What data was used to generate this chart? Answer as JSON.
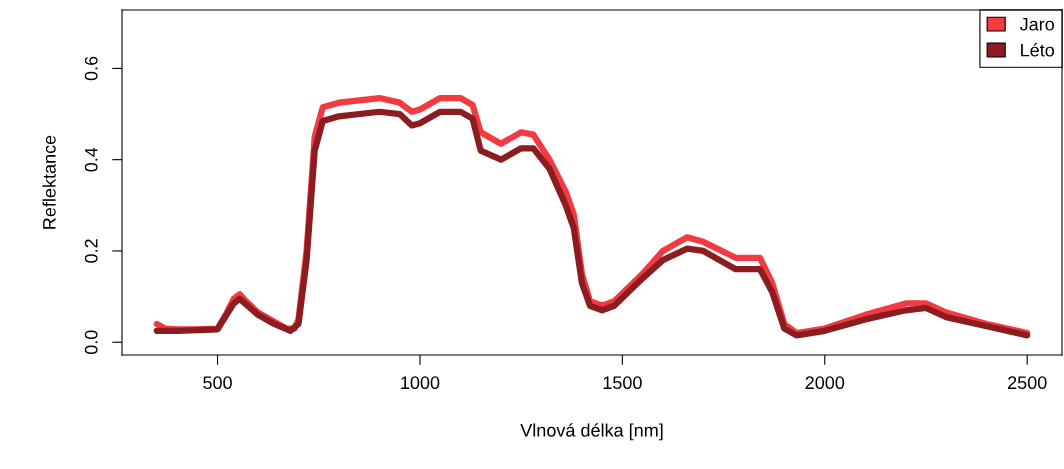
{
  "chart_data": {
    "type": "line",
    "xlabel": "Vlnová délka [nm]",
    "ylabel": "Reflektance",
    "xlim": [
      264,
      2586
    ],
    "ylim": [
      -0.028,
      0.728
    ],
    "xticks": [
      500,
      1000,
      1500,
      2000,
      2500
    ],
    "yticks": [
      {
        "value": 0,
        "label": "0.0"
      },
      {
        "value": 0.2,
        "label": "0.2"
      },
      {
        "value": 0.4,
        "label": "0.4"
      },
      {
        "value": 0.6,
        "label": "0.6"
      }
    ],
    "legend": "top right",
    "grid": false,
    "line_style": "solid",
    "series": [
      {
        "name": "Jaro",
        "color": "#f23a40",
        "x": [
          350,
          370,
          400,
          450,
          500,
          520,
          540,
          555,
          570,
          600,
          640,
          670,
          690,
          700,
          720,
          740,
          760,
          800,
          900,
          950,
          980,
          1000,
          1050,
          1100,
          1130,
          1150,
          1200,
          1250,
          1280,
          1320,
          1360,
          1380,
          1400,
          1420,
          1450,
          1480,
          1550,
          1600,
          1660,
          1700,
          1780,
          1840,
          1870,
          1900,
          1930,
          2000,
          2100,
          2200,
          2250,
          2300,
          2400,
          2500
        ],
        "values": [
          0.04,
          0.03,
          0.028,
          0.028,
          0.03,
          0.06,
          0.095,
          0.105,
          0.09,
          0.065,
          0.045,
          0.03,
          0.03,
          0.05,
          0.2,
          0.45,
          0.515,
          0.525,
          0.535,
          0.525,
          0.505,
          0.51,
          0.535,
          0.535,
          0.52,
          0.46,
          0.435,
          0.46,
          0.455,
          0.4,
          0.33,
          0.28,
          0.15,
          0.09,
          0.08,
          0.09,
          0.15,
          0.2,
          0.23,
          0.22,
          0.185,
          0.185,
          0.13,
          0.04,
          0.02,
          0.03,
          0.06,
          0.085,
          0.085,
          0.065,
          0.04,
          0.02
        ]
      },
      {
        "name": "Léto",
        "color": "#8b1c1f",
        "x": [
          350,
          400,
          500,
          540,
          555,
          600,
          640,
          680,
          700,
          720,
          740,
          760,
          800,
          900,
          950,
          980,
          1000,
          1050,
          1100,
          1130,
          1150,
          1200,
          1250,
          1280,
          1320,
          1360,
          1380,
          1400,
          1420,
          1450,
          1480,
          1550,
          1600,
          1660,
          1700,
          1780,
          1840,
          1870,
          1900,
          1930,
          2000,
          2100,
          2200,
          2250,
          2300,
          2400,
          2500
        ],
        "values": [
          0.025,
          0.025,
          0.028,
          0.085,
          0.095,
          0.06,
          0.04,
          0.025,
          0.04,
          0.18,
          0.42,
          0.485,
          0.495,
          0.505,
          0.5,
          0.475,
          0.48,
          0.505,
          0.505,
          0.49,
          0.42,
          0.4,
          0.425,
          0.425,
          0.38,
          0.3,
          0.25,
          0.13,
          0.08,
          0.07,
          0.08,
          0.14,
          0.18,
          0.205,
          0.2,
          0.16,
          0.16,
          0.11,
          0.03,
          0.015,
          0.025,
          0.05,
          0.07,
          0.075,
          0.055,
          0.035,
          0.015
        ]
      }
    ]
  }
}
